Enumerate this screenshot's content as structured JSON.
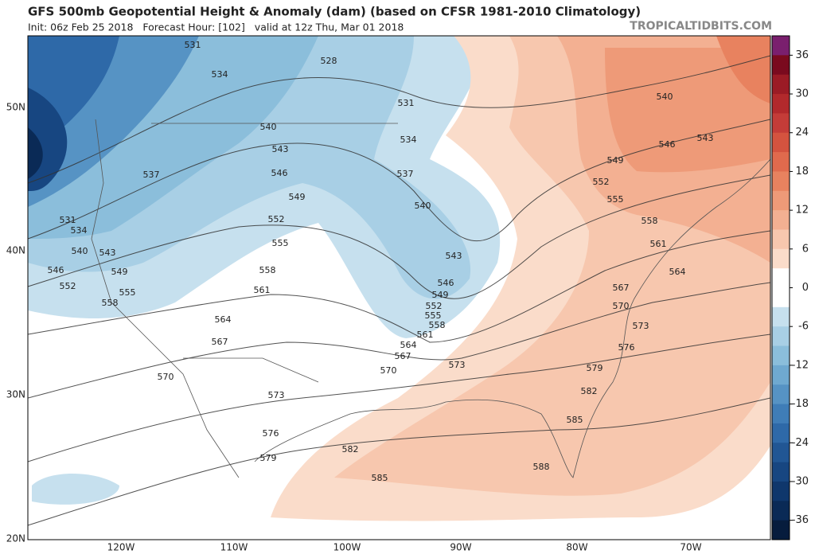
{
  "header": {
    "title": "GFS 500mb Geopotential Height & Anomaly (dam) (based on CFSR 1981-2010 Climatology)",
    "subtitle": "Init: 06z Feb 25 2018   Forecast Hour: [102]   valid at 12z Thu, Mar 01 2018",
    "site": "TROPICALTIDBITS.COM"
  },
  "map": {
    "lat_labels": [
      "50N",
      "40N",
      "30N",
      "20N"
    ],
    "lon_labels": [
      "120W",
      "110W",
      "100W",
      "90W",
      "80W",
      "70W"
    ],
    "contour_labels": [
      "531",
      "528",
      "534",
      "531",
      "540",
      "540",
      "534",
      "546",
      "543",
      "543",
      "549",
      "537",
      "537",
      "546",
      "552",
      "549",
      "555",
      "540",
      "531",
      "552",
      "558",
      "534",
      "555",
      "561",
      "540",
      "543",
      "543",
      "558",
      "546",
      "549",
      "564",
      "546",
      "552",
      "561",
      "567",
      "555",
      "549",
      "558",
      "552",
      "570",
      "555",
      "564",
      "558",
      "573",
      "561",
      "567",
      "564",
      "576",
      "567",
      "573",
      "570",
      "579",
      "570",
      "582",
      "573",
      "585",
      "576",
      "582",
      "579",
      "588",
      "585"
    ]
  },
  "colorbar": {
    "lim": [
      -39,
      39
    ],
    "ticks": [
      36,
      30,
      24,
      18,
      12,
      6,
      0,
      -6,
      -12,
      -18,
      -24,
      -30,
      -36
    ],
    "colors": [
      "#7a1f6e",
      "#7a0a1e",
      "#9b1b25",
      "#b2292c",
      "#c43c38",
      "#d4533f",
      "#e06a4d",
      "#e8825f",
      "#ee9a78",
      "#f3b092",
      "#f7c7ae",
      "#fadcca",
      "#ffffff",
      "#ffffff",
      "#c6e0ee",
      "#a8cfe5",
      "#8bbedb",
      "#6fa9d0",
      "#5693c4",
      "#3f7db7",
      "#2e69a8",
      "#215694",
      "#174681",
      "#0f376c",
      "#0a2a56",
      "#061c3d"
    ]
  }
}
